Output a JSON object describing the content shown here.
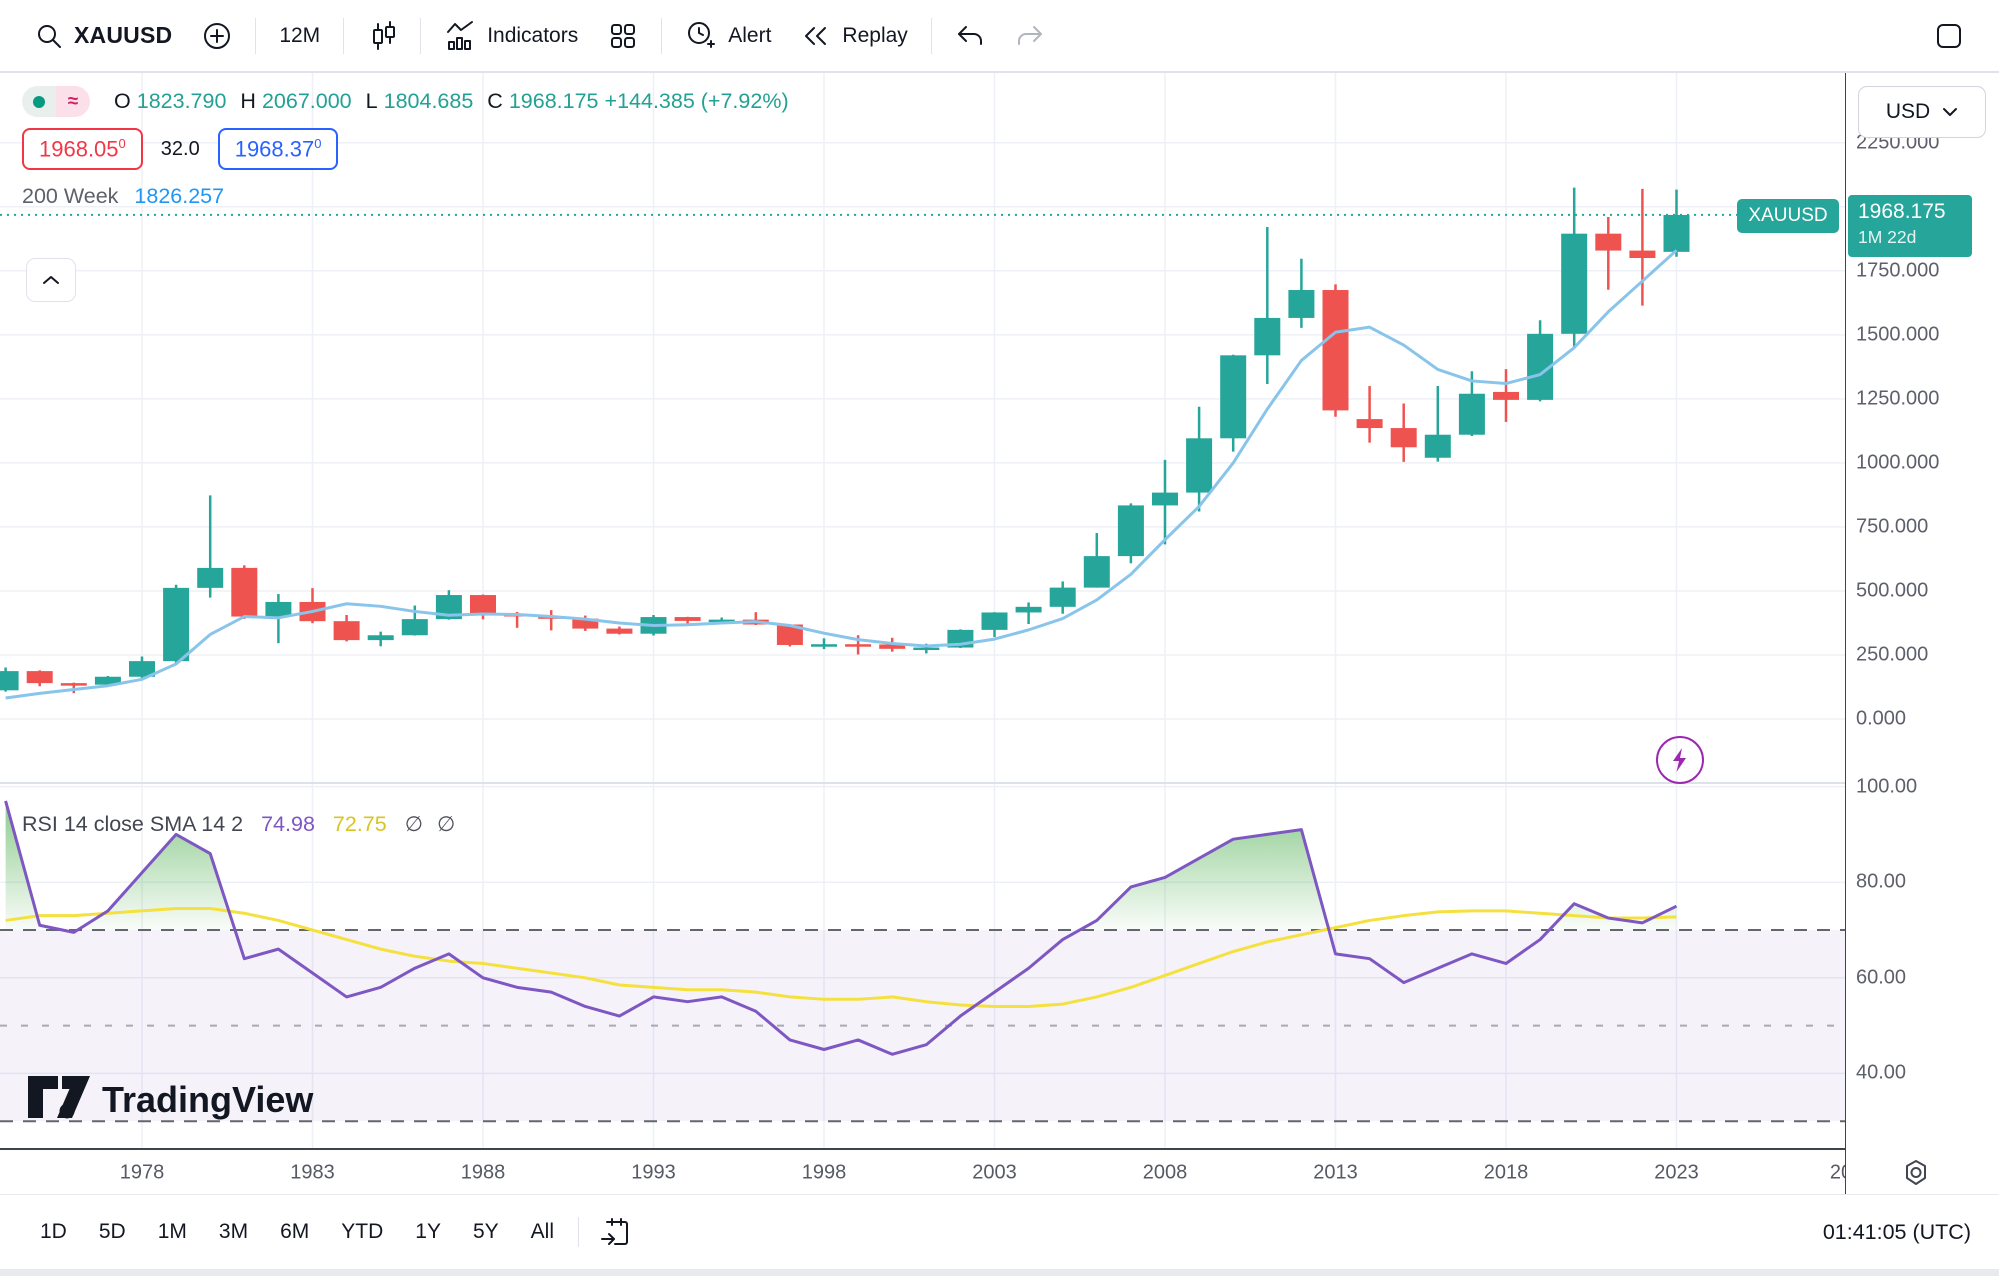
{
  "header": {
    "symbol": "XAUUSD",
    "interval": "12M",
    "indicators_label": "Indicators",
    "alert_label": "Alert",
    "replay_label": "Replay"
  },
  "legend": {
    "ohlc": {
      "o_label": "O",
      "o_value": "1823.790",
      "h_label": "H",
      "h_value": "2067.000",
      "l_label": "L",
      "l_value": "1804.685",
      "c_label": "C",
      "c_value": "1968.175",
      "change": "+144.385 (+7.92%)"
    },
    "bid": {
      "main": "1968.05",
      "sup": "0"
    },
    "spread": "32.0",
    "ask": {
      "main": "1968.37",
      "sup": "0"
    },
    "marker_symbol": "≈",
    "overlay": {
      "name": "200 Week",
      "value": "1826.257"
    }
  },
  "rsi_legend": {
    "title": "RSI 14 close SMA 14 2",
    "rsi_value": "74.98",
    "sma_value": "72.75",
    "hidden1": "∅",
    "hidden2": "∅"
  },
  "price_scale": {
    "currency": "USD",
    "ticks": [
      {
        "label": "2250.000",
        "value": 2250
      },
      {
        "label": "2000.000",
        "value": 2000
      },
      {
        "label": "1750.000",
        "value": 1750
      },
      {
        "label": "1500.000",
        "value": 1500
      },
      {
        "label": "1250.000",
        "value": 1250
      },
      {
        "label": "1000.000",
        "value": 1000
      },
      {
        "label": "750.000",
        "value": 750
      },
      {
        "label": "500.000",
        "value": 500
      },
      {
        "label": "250.000",
        "value": 250
      },
      {
        "label": "0.000",
        "value": 0
      }
    ],
    "tag": {
      "symbol": "XAUUSD",
      "price": "1968.175",
      "countdown": "1M 22d"
    }
  },
  "rsi_scale": {
    "ticks": [
      {
        "label": "100.00",
        "value": 100
      },
      {
        "label": "80.00",
        "value": 80
      },
      {
        "label": "60.00",
        "value": 60
      },
      {
        "label": "40.00",
        "value": 40
      }
    ]
  },
  "time_scale": {
    "ticks": [
      {
        "label": "1978",
        "year": 1978
      },
      {
        "label": "1983",
        "year": 1983
      },
      {
        "label": "1988",
        "year": 1988
      },
      {
        "label": "1993",
        "year": 1993
      },
      {
        "label": "1998",
        "year": 1998
      },
      {
        "label": "2003",
        "year": 2003
      },
      {
        "label": "2008",
        "year": 2008
      },
      {
        "label": "2013",
        "year": 2013
      },
      {
        "label": "2018",
        "year": 2018
      },
      {
        "label": "2023",
        "year": 2023
      },
      {
        "label": "20",
        "year": 2028,
        "partial": true
      }
    ]
  },
  "footer": {
    "ranges": [
      "1D",
      "5D",
      "1M",
      "3M",
      "6M",
      "YTD",
      "1Y",
      "5Y",
      "All"
    ],
    "clock": "01:41:05 (UTC)"
  },
  "watermark": "TradingView",
  "colors": {
    "up": "#26a69a",
    "down": "#ef5350",
    "ma_line": "#89c4ea",
    "price_line": "#26a69a",
    "tag_bg": "#26a69a",
    "value_text": "#22a194",
    "bid": "#f23645",
    "ask": "#2962ff",
    "overlay_value": "#2196f3",
    "rsi_line": "#7e57c2",
    "rsi_sma_line": "#f5e13e",
    "band_fill": "rgba(126,87,194,0.08)",
    "overbought_fill": "#3aa63c",
    "dashed_level": "#63666e",
    "mid_level": "#a7aab3",
    "grid": "#edf0f6",
    "axis_border": "#3f434c",
    "accent_purple": "#9c27b0"
  },
  "chart_data": {
    "type": "candlestick",
    "symbol": "XAUUSD",
    "interval": "12M",
    "x_unit": "year",
    "price_grid_step": 250,
    "x_grid_step_years": 5,
    "price_line": 1968.175,
    "candles": [
      [
        1974,
        112,
        201,
        107,
        187
      ],
      [
        1975,
        187,
        190,
        128,
        140
      ],
      [
        1976,
        140,
        142,
        101,
        134
      ],
      [
        1977,
        134,
        168,
        129,
        165
      ],
      [
        1978,
        165,
        244,
        160,
        226
      ],
      [
        1979,
        226,
        524,
        216,
        512
      ],
      [
        1980,
        512,
        873,
        474,
        590
      ],
      [
        1981,
        590,
        600,
        391,
        400
      ],
      [
        1982,
        400,
        488,
        296,
        457
      ],
      [
        1983,
        457,
        511,
        374,
        382
      ],
      [
        1984,
        382,
        406,
        303,
        308
      ],
      [
        1985,
        308,
        341,
        284,
        327
      ],
      [
        1986,
        327,
        443,
        326,
        390
      ],
      [
        1987,
        390,
        503,
        388,
        484
      ],
      [
        1988,
        484,
        486,
        389,
        410
      ],
      [
        1989,
        410,
        418,
        356,
        401
      ],
      [
        1990,
        401,
        425,
        346,
        392
      ],
      [
        1991,
        392,
        404,
        344,
        353
      ],
      [
        1992,
        353,
        361,
        330,
        333
      ],
      [
        1993,
        333,
        406,
        326,
        398
      ],
      [
        1994,
        398,
        399,
        369,
        383
      ],
      [
        1995,
        383,
        396,
        372,
        388
      ],
      [
        1996,
        388,
        417,
        367,
        369
      ],
      [
        1997,
        369,
        370,
        283,
        289
      ],
      [
        1998,
        289,
        315,
        273,
        292
      ],
      [
        1999,
        292,
        327,
        252,
        291
      ],
      [
        2000,
        291,
        317,
        263,
        274
      ],
      [
        2001,
        274,
        294,
        256,
        279
      ],
      [
        2002,
        279,
        350,
        277,
        348
      ],
      [
        2003,
        348,
        417,
        320,
        416
      ],
      [
        2004,
        416,
        455,
        371,
        438
      ],
      [
        2005,
        438,
        537,
        411,
        513
      ],
      [
        2006,
        513,
        726,
        513,
        636
      ],
      [
        2007,
        636,
        842,
        608,
        834
      ],
      [
        2008,
        834,
        1012,
        682,
        884
      ],
      [
        2009,
        884,
        1219,
        810,
        1096
      ],
      [
        2010,
        1096,
        1422,
        1044,
        1420
      ],
      [
        2011,
        1420,
        1921,
        1308,
        1566
      ],
      [
        2012,
        1566,
        1797,
        1527,
        1675
      ],
      [
        2013,
        1675,
        1697,
        1180,
        1205
      ],
      [
        2014,
        1171,
        1300,
        1079,
        1136
      ],
      [
        2015,
        1136,
        1232,
        1004,
        1061
      ],
      [
        2016,
        1020,
        1300,
        1005,
        1110
      ],
      [
        2017,
        1110,
        1358,
        1105,
        1270
      ],
      [
        2018,
        1277,
        1366,
        1160,
        1246
      ],
      [
        2019,
        1246,
        1557,
        1240,
        1504
      ],
      [
        2020,
        1504,
        2075,
        1451,
        1895
      ],
      [
        2021,
        1895,
        1960,
        1676,
        1829
      ],
      [
        2022,
        1829,
        2070,
        1614,
        1800
      ],
      [
        2023,
        1824,
        2067,
        1805,
        1968
      ]
    ],
    "ma_200week": [
      [
        1974,
        82
      ],
      [
        1975,
        100
      ],
      [
        1976,
        115
      ],
      [
        1977,
        130
      ],
      [
        1978,
        155
      ],
      [
        1979,
        215
      ],
      [
        1980,
        330
      ],
      [
        1981,
        400
      ],
      [
        1982,
        395
      ],
      [
        1983,
        420
      ],
      [
        1984,
        450
      ],
      [
        1985,
        440
      ],
      [
        1986,
        420
      ],
      [
        1987,
        405
      ],
      [
        1988,
        410
      ],
      [
        1989,
        408
      ],
      [
        1990,
        400
      ],
      [
        1991,
        390
      ],
      [
        1992,
        375
      ],
      [
        1993,
        365
      ],
      [
        1994,
        368
      ],
      [
        1995,
        375
      ],
      [
        1996,
        380
      ],
      [
        1997,
        365
      ],
      [
        1998,
        335
      ],
      [
        1999,
        310
      ],
      [
        2000,
        295
      ],
      [
        2001,
        285
      ],
      [
        2002,
        292
      ],
      [
        2003,
        312
      ],
      [
        2004,
        348
      ],
      [
        2005,
        392
      ],
      [
        2006,
        465
      ],
      [
        2007,
        565
      ],
      [
        2008,
        700
      ],
      [
        2009,
        830
      ],
      [
        2010,
        1000
      ],
      [
        2011,
        1210
      ],
      [
        2012,
        1400
      ],
      [
        2013,
        1510
      ],
      [
        2014,
        1530
      ],
      [
        2015,
        1460
      ],
      [
        2016,
        1365
      ],
      [
        2017,
        1320
      ],
      [
        2018,
        1310
      ],
      [
        2019,
        1345
      ],
      [
        2020,
        1450
      ],
      [
        2021,
        1590
      ],
      [
        2022,
        1710
      ],
      [
        2023,
        1830
      ]
    ],
    "rsi": {
      "length": 14,
      "source": "close",
      "last": 74.98,
      "sma_last": 72.75,
      "upper_band": 70,
      "middle_band": 50,
      "lower_band": 30,
      "values": [
        [
          1974,
          97
        ],
        [
          1975,
          71
        ],
        [
          1976,
          69.5
        ],
        [
          1977,
          74
        ],
        [
          1978,
          82
        ],
        [
          1979,
          90
        ],
        [
          1980,
          86
        ],
        [
          1981,
          64
        ],
        [
          1982,
          66
        ],
        [
          1983,
          61
        ],
        [
          1984,
          56
        ],
        [
          1985,
          58
        ],
        [
          1986,
          62
        ],
        [
          1987,
          65
        ],
        [
          1988,
          60
        ],
        [
          1989,
          58
        ],
        [
          1990,
          57
        ],
        [
          1991,
          54
        ],
        [
          1992,
          52
        ],
        [
          1993,
          56
        ],
        [
          1994,
          55
        ],
        [
          1995,
          56
        ],
        [
          1996,
          53
        ],
        [
          1997,
          47
        ],
        [
          1998,
          45
        ],
        [
          1999,
          47
        ],
        [
          2000,
          44
        ],
        [
          2001,
          46
        ],
        [
          2002,
          52
        ],
        [
          2003,
          57
        ],
        [
          2004,
          62
        ],
        [
          2005,
          68
        ],
        [
          2006,
          72
        ],
        [
          2007,
          79
        ],
        [
          2008,
          81
        ],
        [
          2009,
          85
        ],
        [
          2010,
          89
        ],
        [
          2011,
          90
        ],
        [
          2012,
          91
        ],
        [
          2013,
          65
        ],
        [
          2014,
          64
        ],
        [
          2015,
          59
        ],
        [
          2016,
          62
        ],
        [
          2017,
          65
        ],
        [
          2018,
          63
        ],
        [
          2019,
          68
        ],
        [
          2020,
          75.5
        ],
        [
          2021,
          72.5
        ],
        [
          2022,
          71.5
        ],
        [
          2023,
          74.98
        ]
      ],
      "sma": [
        [
          1974,
          72
        ],
        [
          1975,
          73
        ],
        [
          1976,
          73
        ],
        [
          1977,
          73.5
        ],
        [
          1978,
          74
        ],
        [
          1979,
          74.5
        ],
        [
          1980,
          74.5
        ],
        [
          1981,
          73.5
        ],
        [
          1982,
          72
        ],
        [
          1983,
          70
        ],
        [
          1984,
          68
        ],
        [
          1985,
          66
        ],
        [
          1986,
          64.5
        ],
        [
          1987,
          63.5
        ],
        [
          1988,
          63
        ],
        [
          1989,
          62
        ],
        [
          1990,
          61
        ],
        [
          1991,
          60
        ],
        [
          1992,
          58.5
        ],
        [
          1993,
          58
        ],
        [
          1994,
          57.5
        ],
        [
          1995,
          57.5
        ],
        [
          1996,
          57
        ],
        [
          1997,
          56
        ],
        [
          1998,
          55.5
        ],
        [
          1999,
          55.5
        ],
        [
          2000,
          56
        ],
        [
          2001,
          55
        ],
        [
          2002,
          54.3
        ],
        [
          2003,
          54
        ],
        [
          2004,
          54
        ],
        [
          2005,
          54.5
        ],
        [
          2006,
          56
        ],
        [
          2007,
          58
        ],
        [
          2008,
          60.5
        ],
        [
          2009,
          63
        ],
        [
          2010,
          65.5
        ],
        [
          2011,
          67.5
        ],
        [
          2012,
          69
        ],
        [
          2013,
          70.5
        ],
        [
          2014,
          72
        ],
        [
          2015,
          73
        ],
        [
          2016,
          73.8
        ],
        [
          2017,
          74
        ],
        [
          2018,
          74
        ],
        [
          2019,
          73.5
        ],
        [
          2020,
          73
        ],
        [
          2021,
          72.5
        ],
        [
          2022,
          72.5
        ],
        [
          2023,
          72.75
        ]
      ]
    }
  }
}
